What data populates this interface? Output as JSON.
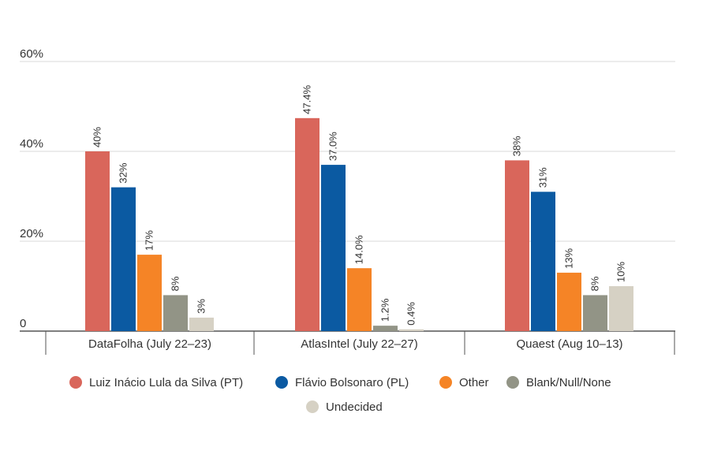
{
  "chart_data": {
    "type": "bar",
    "categories": [
      "DataFolha (July 22–23)",
      "AtlasIntel (July 22–27)",
      "Quaest (Aug 10–13)"
    ],
    "series": [
      {
        "name": "Luiz Inácio Lula da Silva (PT)",
        "color": "#d9665b",
        "values": [
          40,
          47.4,
          38
        ],
        "labels": [
          "40%",
          "47.4%",
          "38%"
        ]
      },
      {
        "name": "Flávio Bolsonaro (PL)",
        "color": "#0b5aa2",
        "values": [
          32,
          37.0,
          31
        ],
        "labels": [
          "32%",
          "37.0%",
          "31%"
        ]
      },
      {
        "name": "Other",
        "color": "#f58426",
        "values": [
          17,
          14.0,
          13
        ],
        "labels": [
          "17%",
          "14.0%",
          "13%"
        ]
      },
      {
        "name": "Blank/Null/None",
        "color": "#929486",
        "values": [
          8,
          1.2,
          8
        ],
        "labels": [
          "8%",
          "1.2%",
          "8%"
        ]
      },
      {
        "name": "Undecided",
        "color": "#d6d1c4",
        "values": [
          3,
          0.4,
          10
        ],
        "labels": [
          "3%",
          "0.4%",
          "10%"
        ]
      }
    ],
    "y_ticks": [
      {
        "value": 0,
        "label": "0"
      },
      {
        "value": 20,
        "label": "20%"
      },
      {
        "value": 40,
        "label": "40%"
      },
      {
        "value": 60,
        "label": "60%"
      }
    ],
    "ylim": [
      0,
      60
    ],
    "grid": true,
    "legend_position": "bottom"
  }
}
